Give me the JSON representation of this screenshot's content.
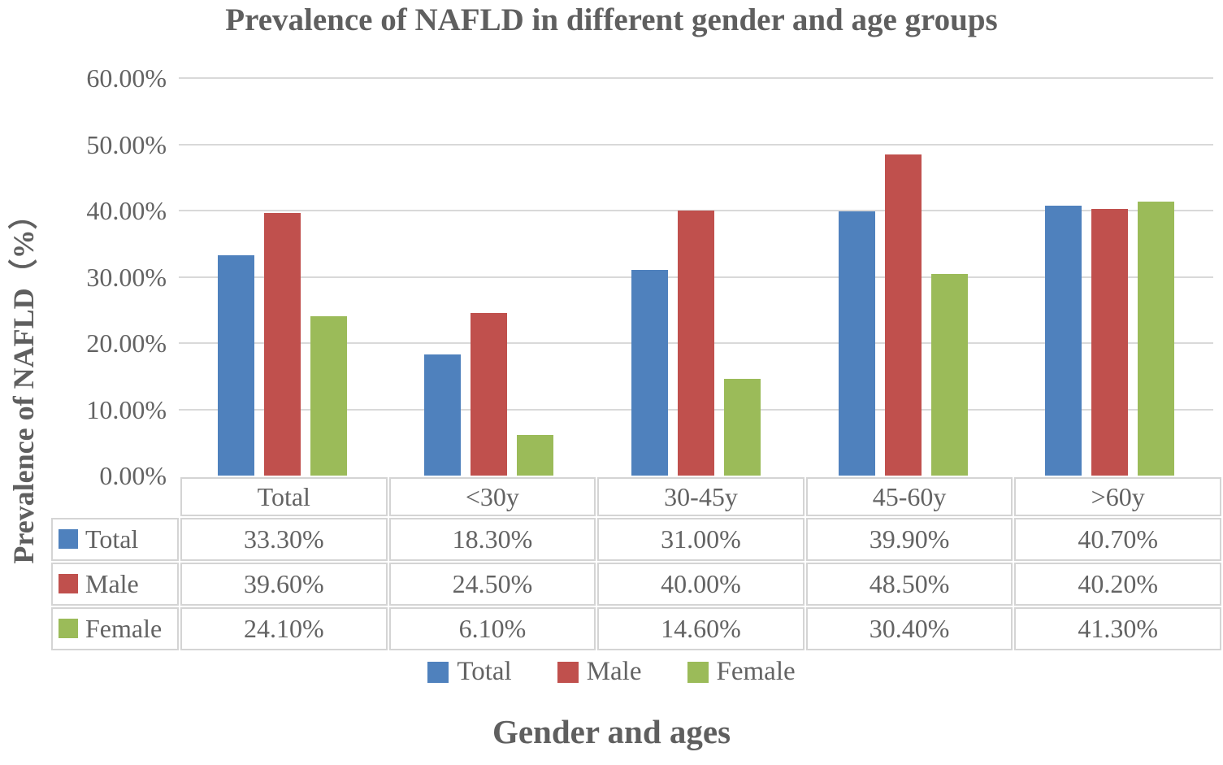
{
  "title": "Prevalence of NAFLD in different gender and age groups",
  "y_axis": {
    "title": "Prevalence of NAFLD（%）",
    "ticks": [
      "60.00%",
      "50.00%",
      "40.00%",
      "30.00%",
      "20.00%",
      "10.00%",
      "0.00%"
    ]
  },
  "x_axis": {
    "title": "Gender and ages"
  },
  "colors": {
    "total": "#4F81BD",
    "male": "#C0504D",
    "female": "#9BBB59",
    "gridline": "#D9D9D9",
    "table_border": "#D4D4D4",
    "text": "#636363"
  },
  "chart_data": {
    "type": "bar",
    "title": "Prevalence of NAFLD in different gender and age groups",
    "xlabel": "Gender and ages",
    "ylabel": "Prevalence of NAFLD（%）",
    "categories": [
      "Total",
      "<30y",
      "30-45y",
      "45-60y",
      ">60y"
    ],
    "series": [
      {
        "name": "Total",
        "color": "#4F81BD",
        "values": [
          33.3,
          18.3,
          31.0,
          39.9,
          40.7
        ],
        "labels": [
          "33.30%",
          "18.30%",
          "31.00%",
          "39.90%",
          "40.70%"
        ]
      },
      {
        "name": "Male",
        "color": "#C0504D",
        "values": [
          39.6,
          24.5,
          40.0,
          48.5,
          40.2
        ],
        "labels": [
          "39.60%",
          "24.50%",
          "40.00%",
          "48.50%",
          "40.20%"
        ]
      },
      {
        "name": "Female",
        "color": "#9BBB59",
        "values": [
          24.1,
          6.1,
          14.6,
          30.4,
          41.3
        ],
        "labels": [
          "24.10%",
          "6.10%",
          "14.60%",
          "30.40%",
          "41.30%"
        ]
      }
    ],
    "ylim": [
      0,
      60
    ],
    "ytick_step": 10,
    "grid": true,
    "legend_position": "bottom",
    "legend_labels": [
      "Total",
      "Male",
      "Female"
    ],
    "data_table_shown": true
  }
}
